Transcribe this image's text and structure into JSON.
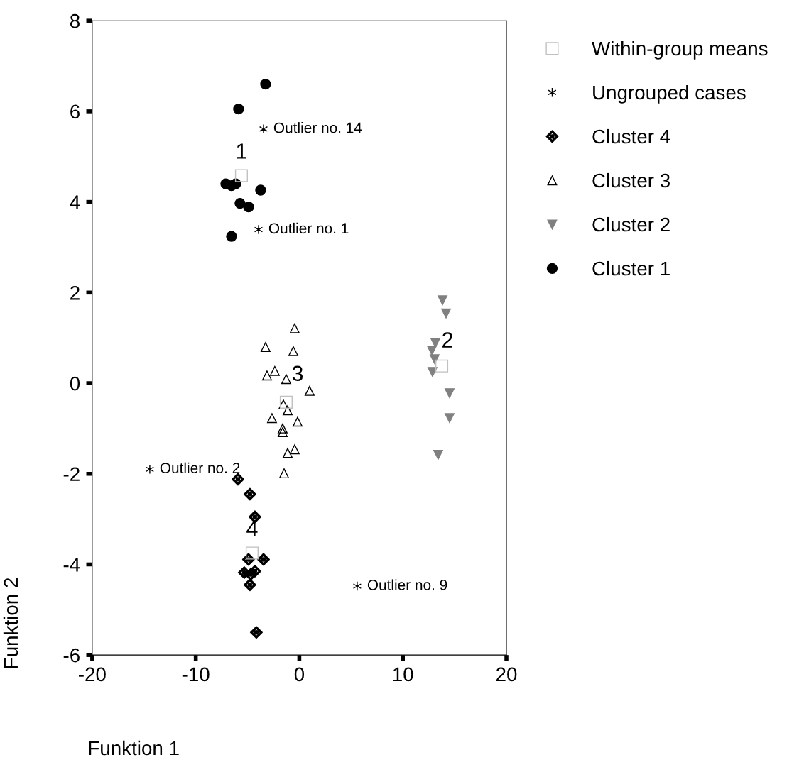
{
  "chart_data": {
    "type": "scatter",
    "xlabel": "Funktion 1",
    "ylabel": "Funktion 2",
    "xlim": [
      -20,
      20
    ],
    "ylim": [
      -6,
      8
    ],
    "xticks": [
      -20,
      -10,
      0,
      10,
      20
    ],
    "yticks": [
      -6,
      -4,
      -2,
      0,
      2,
      4,
      6,
      8
    ],
    "grid": false,
    "legend": "right",
    "series": [
      {
        "name": "Within-group means",
        "color": "#c0c0c0",
        "marker": "square",
        "x": [
          -5.59,
          13.76,
          -1.27,
          -4.56
        ],
        "values": [
          4.58,
          0.38,
          -0.42,
          -3.75
        ]
      },
      {
        "name": "Ungrouped cases",
        "color": "#000000",
        "marker": "cross",
        "x": [
          -3.46,
          -3.94,
          -14.44,
          5.59
        ],
        "values": [
          5.61,
          3.39,
          -1.9,
          -4.48
        ]
      },
      {
        "name": "Cluster 4",
        "color": "#000000",
        "marker": "diamond",
        "x": [
          -5.93,
          -4.77,
          -4.29,
          -4.91,
          -3.46,
          -5.32,
          -4.7,
          -4.29,
          -4.77,
          -4.15
        ],
        "values": [
          -2.12,
          -2.45,
          -2.95,
          -3.89,
          -3.89,
          -4.18,
          -4.22,
          -4.15,
          -4.45,
          -5.5
        ]
      },
      {
        "name": "Cluster 3",
        "color": "#000000",
        "marker": "triangle",
        "x": [
          -0.45,
          -3.26,
          -0.58,
          -2.37,
          -3.12,
          -1.27,
          0.99,
          -1.54,
          -1.13,
          -2.64,
          -0.17,
          -1.61,
          -1.61,
          -0.45,
          -1.13,
          -1.47
        ],
        "values": [
          1.21,
          0.8,
          0.71,
          0.27,
          0.17,
          0.09,
          -0.17,
          -0.47,
          -0.6,
          -0.77,
          -0.85,
          -1.0,
          -1.08,
          -1.46,
          -1.54,
          -1.99
        ]
      },
      {
        "name": "Cluster 2",
        "color": "#808080",
        "marker": "triangle_down",
        "x": [
          13.83,
          14.17,
          13.14,
          12.8,
          13.07,
          12.86,
          14.51,
          14.51,
          13.41
        ],
        "values": [
          1.83,
          1.54,
          0.89,
          0.72,
          0.53,
          0.25,
          -0.22,
          -0.77,
          -1.58
        ]
      },
      {
        "name": "Cluster 1",
        "color": "#000000",
        "marker": "circle",
        "x": [
          -3.26,
          -5.87,
          -7.1,
          -6.55,
          -6.14,
          -3.74,
          -5.73,
          -4.9,
          -6.55
        ],
        "values": [
          6.6,
          6.05,
          4.4,
          4.36,
          4.4,
          4.26,
          3.97,
          3.89,
          3.24
        ]
      }
    ],
    "annotations": [
      {
        "text": "1",
        "x": -5.59,
        "y": 4.58
      },
      {
        "text": "2",
        "x": 13.76,
        "y": 0.38
      },
      {
        "text": "3",
        "x": -1.27,
        "y": -0.42
      },
      {
        "text": "4",
        "x": -4.56,
        "y": -3.75
      },
      {
        "text": "Outlier no. 14",
        "x": -3.46,
        "y": 5.61
      },
      {
        "text": "Outlier no. 1",
        "x": -3.94,
        "y": 3.39
      },
      {
        "text": "Outlier no. 2",
        "x": -14.44,
        "y": -1.9
      },
      {
        "text": "Outlier no. 9",
        "x": 5.59,
        "y": -4.48
      }
    ]
  }
}
